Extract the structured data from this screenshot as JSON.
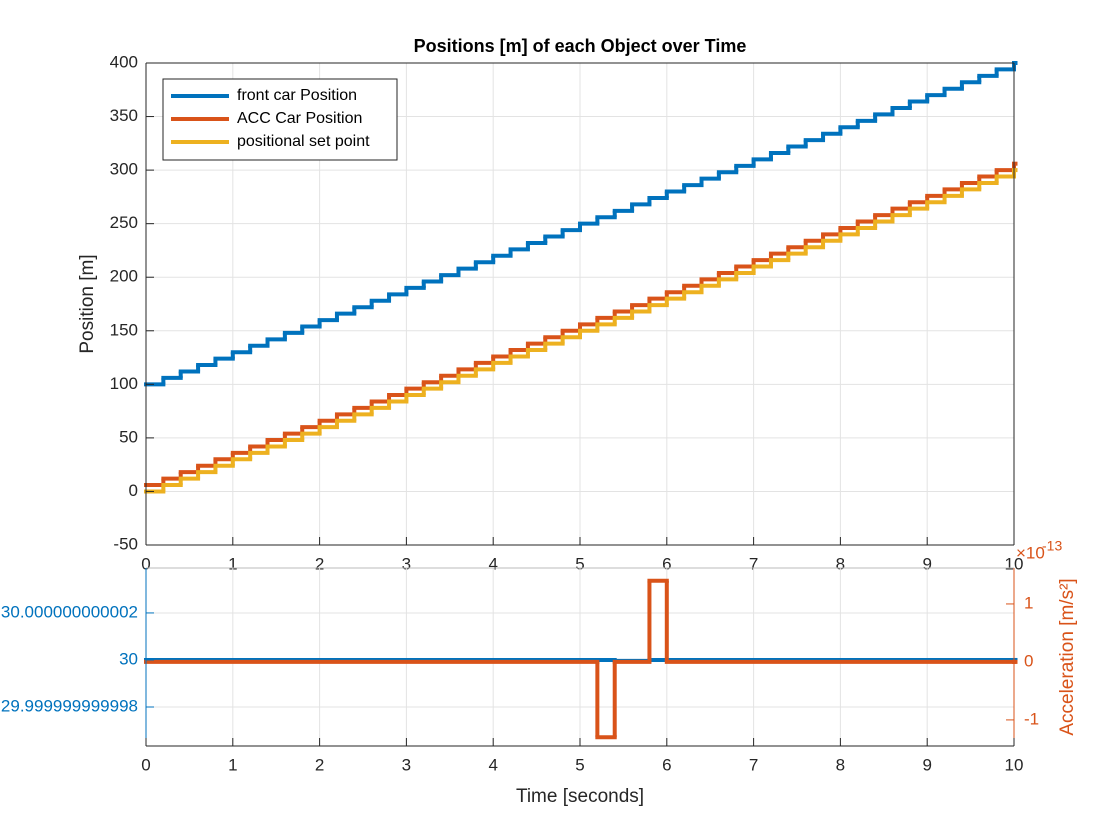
{
  "chart_data": [
    {
      "type": "stairs",
      "title": "Positions [m] of each Object over Time",
      "ylabel": "Position [m]",
      "x": [
        0,
        0.2,
        0.4,
        0.6,
        0.8,
        1,
        1.2,
        1.4,
        1.6,
        1.8,
        2,
        2.2,
        2.4,
        2.6,
        2.8,
        3,
        3.2,
        3.4,
        3.6,
        3.8,
        4,
        4.2,
        4.4,
        4.6,
        4.8,
        5,
        5.2,
        5.4,
        5.6,
        5.8,
        6,
        6.2,
        6.4,
        6.6,
        6.8,
        7,
        7.2,
        7.4,
        7.6,
        7.8,
        8,
        8.2,
        8.4,
        8.6,
        8.8,
        9,
        9.2,
        9.4,
        9.6,
        9.8,
        10
      ],
      "series": [
        {
          "name": "front car Position",
          "color": "#0072BD",
          "values": [
            100,
            106,
            112,
            118,
            124,
            130,
            136,
            142,
            148,
            154,
            160,
            166,
            172,
            178,
            184,
            190,
            196,
            202,
            208,
            214,
            220,
            226,
            232,
            238,
            244,
            250,
            256,
            262,
            268,
            274,
            280,
            286,
            292,
            298,
            304,
            310,
            316,
            322,
            328,
            334,
            340,
            346,
            352,
            358,
            364,
            370,
            376,
            382,
            388,
            394,
            400
          ]
        },
        {
          "name": "ACC Car Position",
          "color": "#D95319",
          "values": [
            6,
            12,
            18,
            24,
            30,
            36,
            42,
            48,
            54,
            60,
            66,
            72,
            78,
            84,
            90,
            96,
            102,
            108,
            114,
            120,
            126,
            132,
            138,
            144,
            150,
            156,
            162,
            168,
            174,
            180,
            186,
            192,
            198,
            204,
            210,
            216,
            222,
            228,
            234,
            240,
            246,
            252,
            258,
            264,
            270,
            276,
            282,
            288,
            294,
            300,
            306
          ]
        },
        {
          "name": "positional set point",
          "color": "#EDB120",
          "values": [
            0,
            6,
            12,
            18,
            24,
            30,
            36,
            42,
            48,
            54,
            60,
            66,
            72,
            78,
            84,
            90,
            96,
            102,
            108,
            114,
            120,
            126,
            132,
            138,
            144,
            150,
            156,
            162,
            168,
            174,
            180,
            186,
            192,
            198,
            204,
            210,
            216,
            222,
            228,
            234,
            240,
            246,
            252,
            258,
            264,
            270,
            276,
            282,
            288,
            294,
            300
          ]
        }
      ],
      "xlim": [
        0,
        10
      ],
      "xticks": [
        0,
        1,
        2,
        3,
        4,
        5,
        6,
        7,
        8,
        9,
        10
      ],
      "ylim": [
        -50,
        400
      ],
      "yticks": [
        -50,
        0,
        50,
        100,
        150,
        200,
        250,
        300,
        350,
        400
      ],
      "grid": true,
      "legend": "northwest"
    },
    {
      "type": "stairs",
      "xlabel": "Time [seconds]",
      "y2label": "Acceleration [m/s²]",
      "y2_multiplier": {
        "base": "×10",
        "exponent": "-13"
      },
      "x": [
        0,
        5.2,
        5.4,
        5.8,
        6,
        10
      ],
      "series": [
        {
          "color": "#0072BD",
          "values": [
            30,
            30,
            29.99999999999996,
            30,
            30,
            30
          ]
        },
        {
          "color": "#D95319",
          "axis": "y2",
          "values": [
            0,
            -1.3,
            0,
            1.4,
            0,
            0
          ]
        }
      ],
      "xlim": [
        0,
        10
      ],
      "xticks": [
        0,
        1,
        2,
        3,
        4,
        5,
        6,
        7,
        8,
        9,
        10
      ],
      "ylim": [
        29.99999999999634,
        30.00000000000391
      ],
      "yticks": [
        29.999999999998,
        30,
        30.000000000002
      ],
      "y2lim": [
        -1.45,
        1.62
      ],
      "y2ticks": [
        -1,
        0,
        1
      ],
      "ycolor": "#0072BD",
      "y2color": "#D95319",
      "grid": true
    }
  ]
}
